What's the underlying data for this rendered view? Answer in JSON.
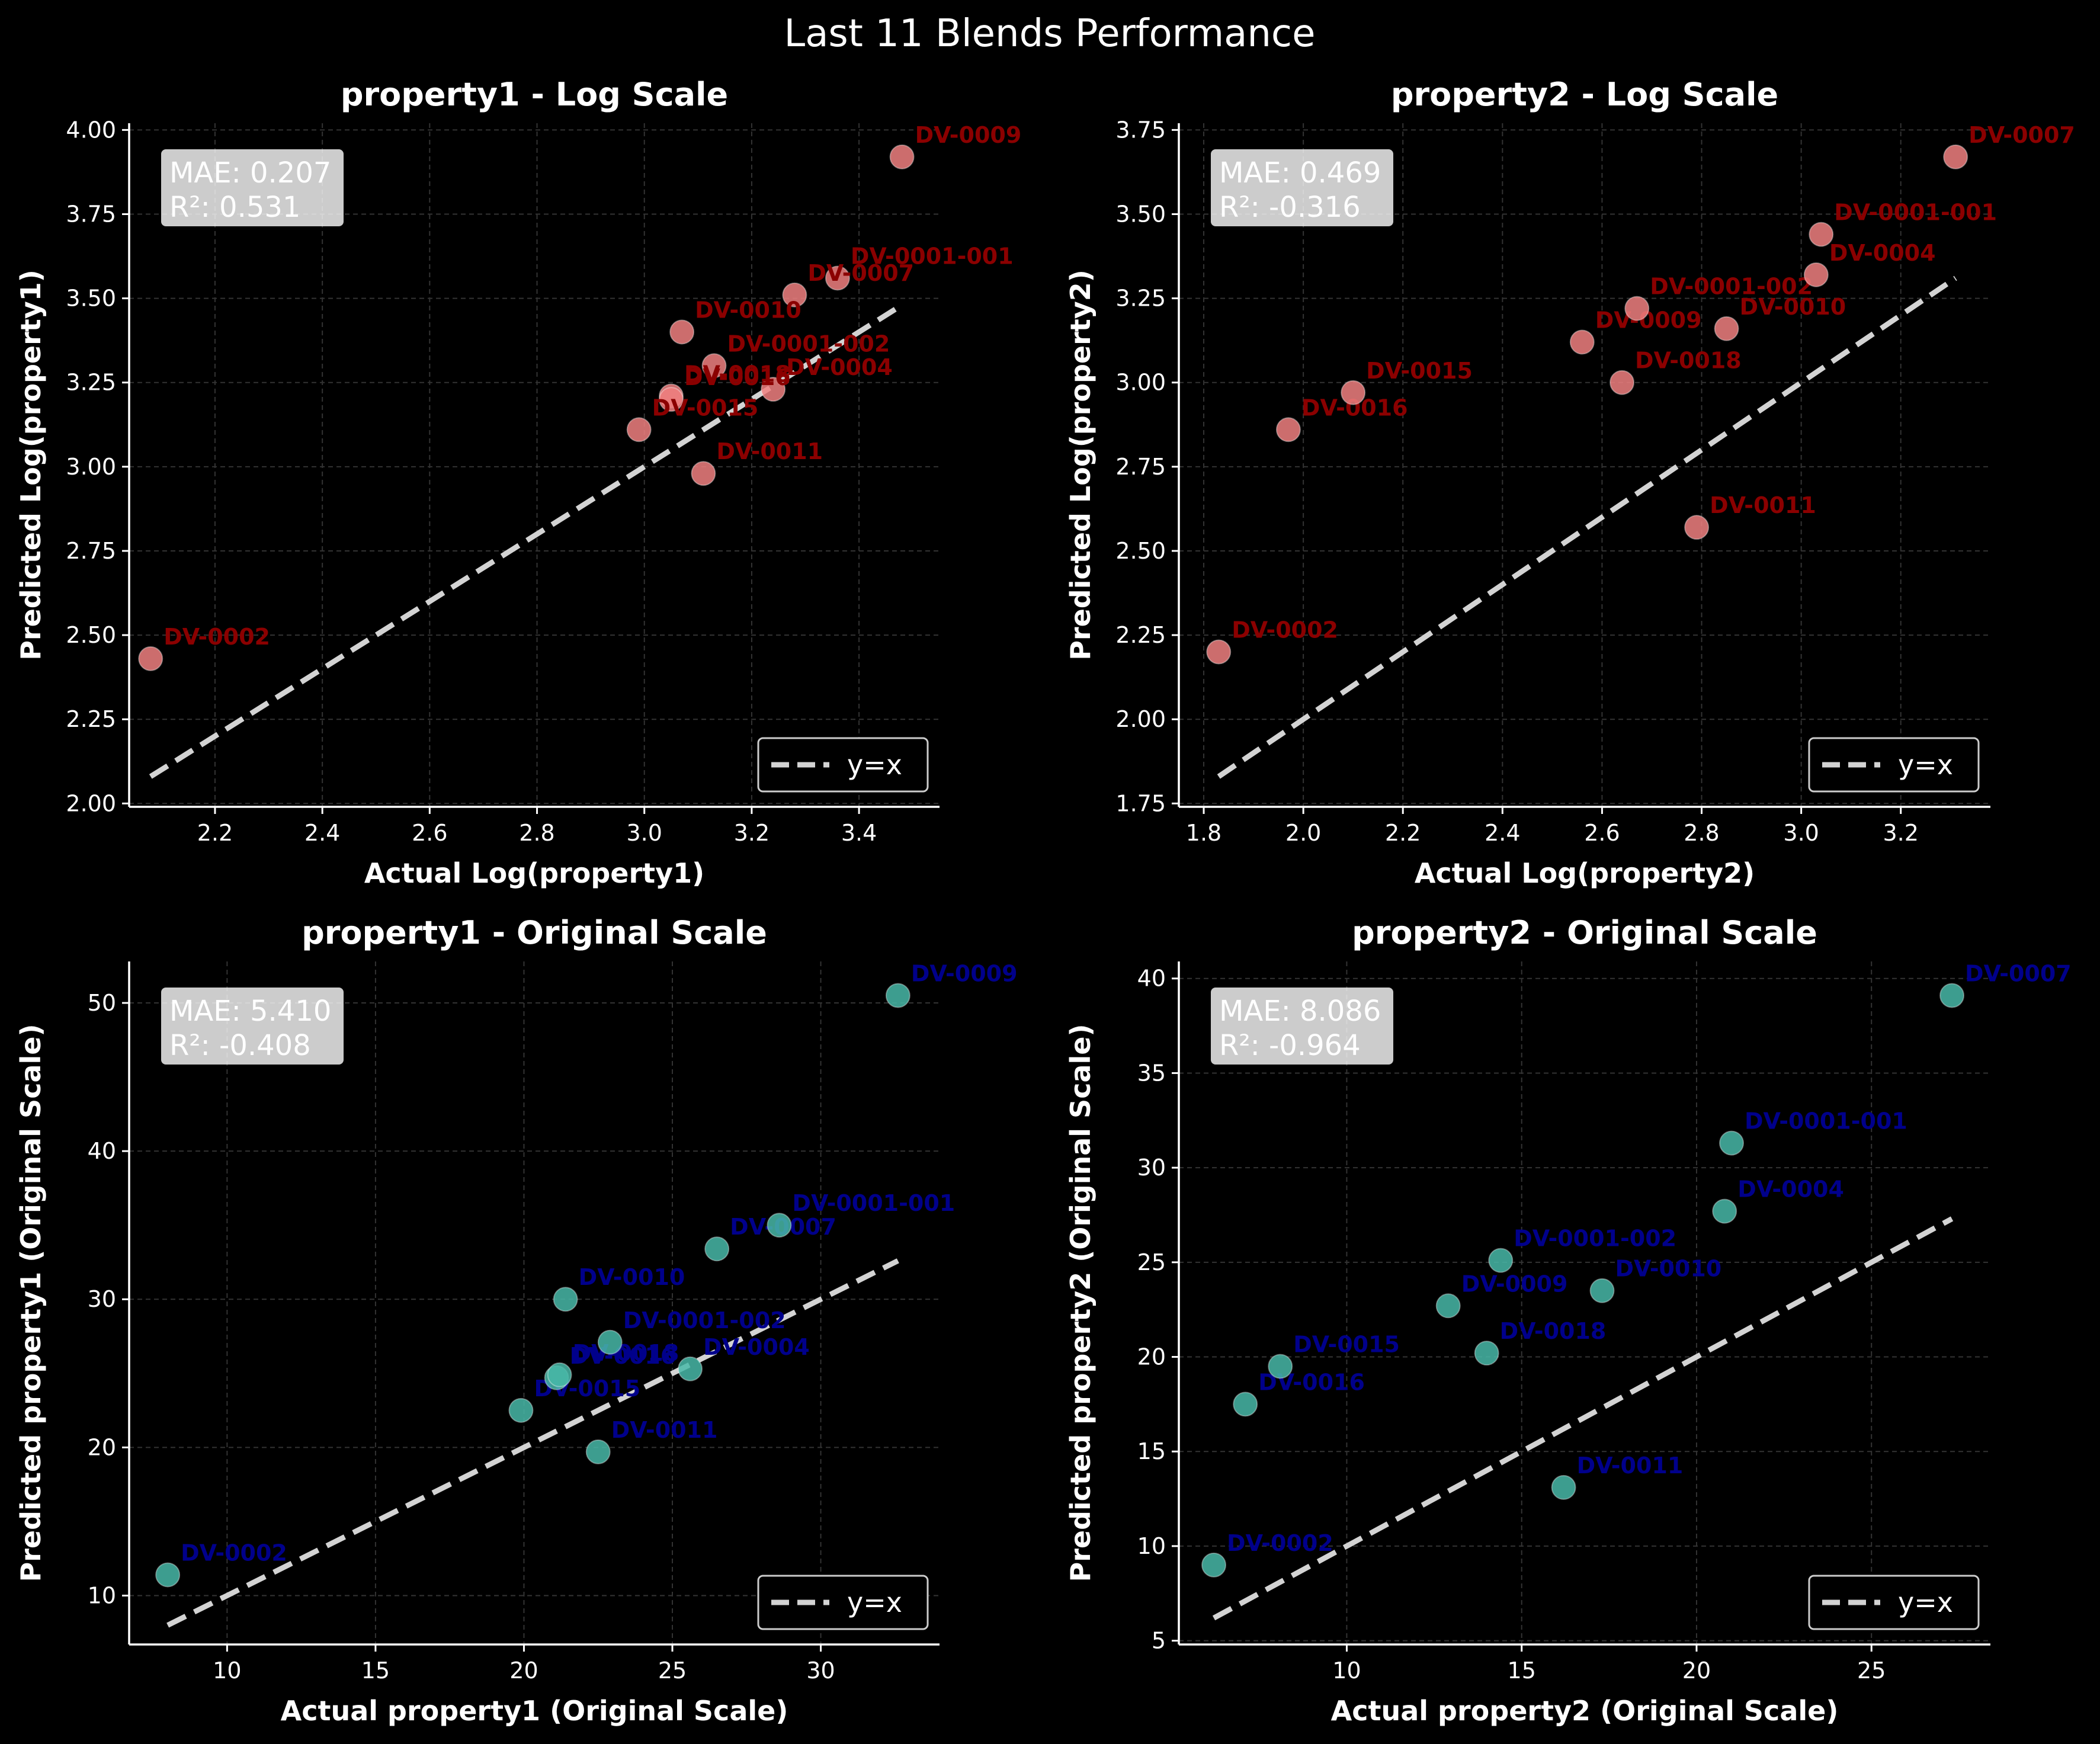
{
  "suptitle": "Last 11 Blends Performance",
  "legend_label": "y=x",
  "colors": {
    "background": "#000000",
    "log_points": "#f08080",
    "log_labels": "#8b0000",
    "orig_points": "#48b8a8",
    "orig_labels": "#00008b",
    "identity_line": "#d3d3d3",
    "grid": "#333333"
  },
  "chart_data": [
    {
      "type": "scatter",
      "title": "property1 - Log Scale",
      "xlabel": "Actual Log(property1)",
      "ylabel": "Predicted Log(property1)",
      "xlim": [
        2.04,
        3.55
      ],
      "ylim": [
        1.99,
        4.02
      ],
      "xticks": [
        "2.2",
        "2.4",
        "2.6",
        "2.8",
        "3.0",
        "3.2",
        "3.4"
      ],
      "yticks": [
        "2.00",
        "2.25",
        "2.50",
        "2.75",
        "3.00",
        "3.25",
        "3.50",
        "3.75",
        "4.00"
      ],
      "stats": [
        "MAE: 0.207",
        "R²: 0.531"
      ],
      "identity": [
        2.08,
        3.48
      ],
      "style": "log",
      "points": [
        {
          "label": "DV-0002",
          "x": 2.08,
          "y": 2.43
        },
        {
          "label": "DV-0009",
          "x": 3.48,
          "y": 3.92
        },
        {
          "label": "DV-0001-001",
          "x": 3.36,
          "y": 3.56
        },
        {
          "label": "DV-0007",
          "x": 3.28,
          "y": 3.51
        },
        {
          "label": "DV-0010",
          "x": 3.07,
          "y": 3.4
        },
        {
          "label": "DV-0001-002",
          "x": 3.13,
          "y": 3.3
        },
        {
          "label": "DV-0004",
          "x": 3.24,
          "y": 3.23
        },
        {
          "label": "DV-0018",
          "x": 3.05,
          "y": 3.21
        },
        {
          "label": "DV-0016",
          "x": 3.05,
          "y": 3.2
        },
        {
          "label": "DV-0015",
          "x": 2.99,
          "y": 3.11
        },
        {
          "label": "DV-0011",
          "x": 3.11,
          "y": 2.98
        }
      ]
    },
    {
      "type": "scatter",
      "title": "property2 - Log Scale",
      "xlabel": "Actual Log(property2)",
      "ylabel": "Predicted Log(property2)",
      "xlim": [
        1.75,
        3.38
      ],
      "ylim": [
        1.74,
        3.77
      ],
      "xticks": [
        "1.8",
        "2.0",
        "2.2",
        "2.4",
        "2.6",
        "2.8",
        "3.0",
        "3.2"
      ],
      "yticks": [
        "1.75",
        "2.00",
        "2.25",
        "2.50",
        "2.75",
        "3.00",
        "3.25",
        "3.50",
        "3.75"
      ],
      "stats": [
        "MAE: 0.469",
        "R²: -0.316"
      ],
      "identity": [
        1.83,
        3.31
      ],
      "style": "log",
      "points": [
        {
          "label": "DV-0002",
          "x": 1.83,
          "y": 2.2
        },
        {
          "label": "DV-0016",
          "x": 1.97,
          "y": 2.86
        },
        {
          "label": "DV-0015",
          "x": 2.1,
          "y": 2.97
        },
        {
          "label": "DV-0009",
          "x": 2.56,
          "y": 3.12
        },
        {
          "label": "DV-0018",
          "x": 2.64,
          "y": 3.0
        },
        {
          "label": "DV-0001-002",
          "x": 2.67,
          "y": 3.22
        },
        {
          "label": "DV-0010",
          "x": 2.85,
          "y": 3.16
        },
        {
          "label": "DV-0011",
          "x": 2.79,
          "y": 2.57
        },
        {
          "label": "DV-0004",
          "x": 3.03,
          "y": 3.32
        },
        {
          "label": "DV-0001-001",
          "x": 3.04,
          "y": 3.44
        },
        {
          "label": "DV-0007",
          "x": 3.31,
          "y": 3.67
        }
      ]
    },
    {
      "type": "scatter",
      "title": "property1 - Original Scale",
      "xlabel": "Actual property1 (Original Scale)",
      "ylabel": "Predicted property1 (Original Scale)",
      "xlim": [
        6.7,
        34.0
      ],
      "ylim": [
        6.7,
        52.8
      ],
      "xticks": [
        "10",
        "15",
        "20",
        "25",
        "30"
      ],
      "yticks": [
        "10",
        "20",
        "30",
        "40",
        "50"
      ],
      "stats": [
        "MAE: 5.410",
        "R²: -0.408"
      ],
      "identity": [
        8.0,
        32.6
      ],
      "style": "orig",
      "points": [
        {
          "label": "DV-0002",
          "x": 8.0,
          "y": 11.4
        },
        {
          "label": "DV-0015",
          "x": 19.9,
          "y": 22.5
        },
        {
          "label": "DV-0016",
          "x": 21.1,
          "y": 24.7
        },
        {
          "label": "DV-0018",
          "x": 21.2,
          "y": 24.9
        },
        {
          "label": "DV-0010",
          "x": 21.4,
          "y": 30.0
        },
        {
          "label": "DV-0001-002",
          "x": 22.9,
          "y": 27.1
        },
        {
          "label": "DV-0011",
          "x": 22.5,
          "y": 19.7
        },
        {
          "label": "DV-0004",
          "x": 25.6,
          "y": 25.3
        },
        {
          "label": "DV-0007",
          "x": 26.5,
          "y": 33.4
        },
        {
          "label": "DV-0001-001",
          "x": 28.6,
          "y": 35.0
        },
        {
          "label": "DV-0009",
          "x": 32.6,
          "y": 50.5
        }
      ]
    },
    {
      "type": "scatter",
      "title": "property2 - Original Scale",
      "xlabel": "Actual property2 (Original Scale)",
      "ylabel": "Predicted property2 (Original Scale)",
      "xlim": [
        5.2,
        28.4
      ],
      "ylim": [
        4.8,
        40.9
      ],
      "xticks": [
        "10",
        "15",
        "20",
        "25"
      ],
      "yticks": [
        "5",
        "10",
        "15",
        "20",
        "25",
        "30",
        "35",
        "40"
      ],
      "stats": [
        "MAE: 8.086",
        "R²: -0.964"
      ],
      "identity": [
        6.2,
        27.3
      ],
      "style": "orig",
      "points": [
        {
          "label": "DV-0002",
          "x": 6.2,
          "y": 9.0
        },
        {
          "label": "DV-0016",
          "x": 7.1,
          "y": 17.5
        },
        {
          "label": "DV-0015",
          "x": 8.1,
          "y": 19.5
        },
        {
          "label": "DV-0009",
          "x": 12.9,
          "y": 22.7
        },
        {
          "label": "DV-0018",
          "x": 14.0,
          "y": 20.2
        },
        {
          "label": "DV-0001-002",
          "x": 14.4,
          "y": 25.1
        },
        {
          "label": "DV-0011",
          "x": 16.2,
          "y": 13.1
        },
        {
          "label": "DV-0010",
          "x": 17.3,
          "y": 23.5
        },
        {
          "label": "DV-0004",
          "x": 20.8,
          "y": 27.7
        },
        {
          "label": "DV-0001-001",
          "x": 21.0,
          "y": 31.3
        },
        {
          "label": "DV-0007",
          "x": 27.3,
          "y": 39.1
        }
      ]
    }
  ]
}
